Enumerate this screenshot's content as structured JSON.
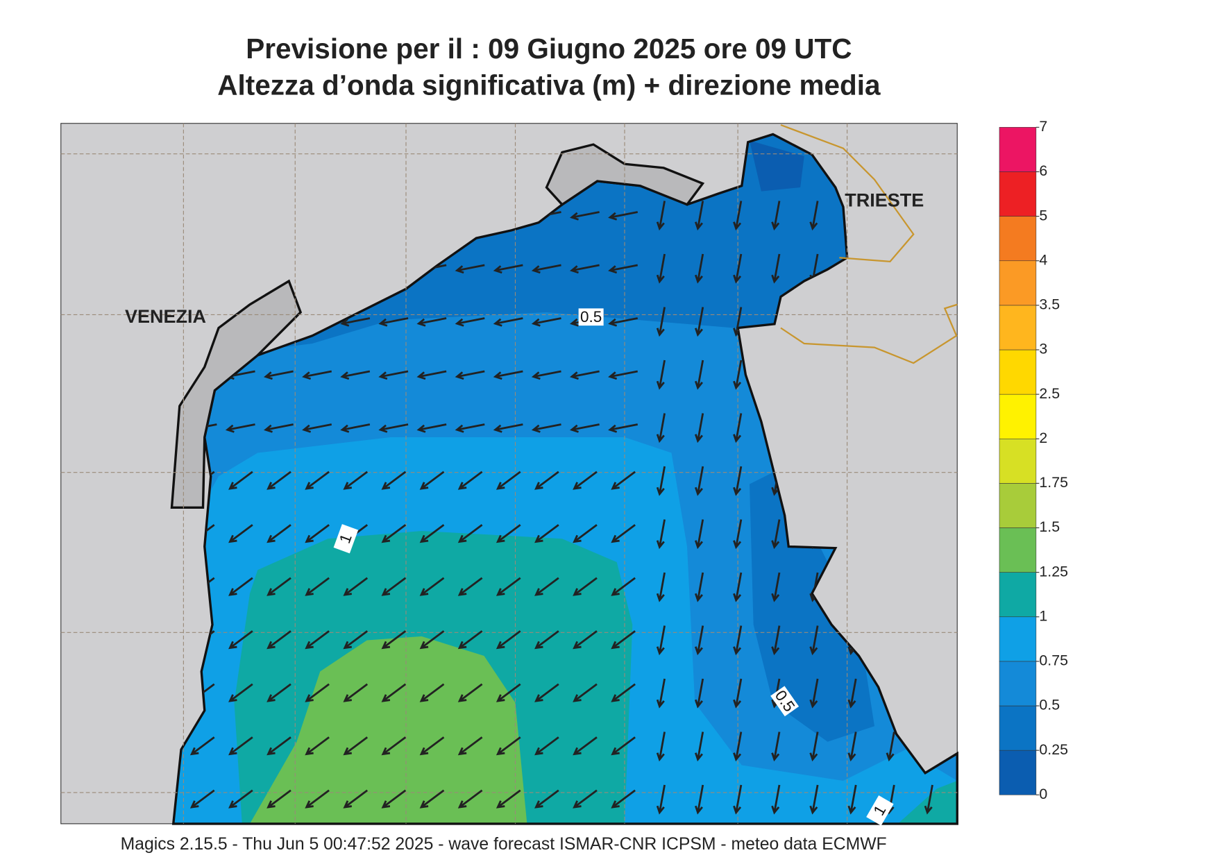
{
  "title": [
    "Previsione per il  :  09   Giugno  2025   ore 09 UTC",
    "Altezza d’onda significativa (m) + direzione media"
  ],
  "places": [
    "VENEZIA",
    "TRIESTE"
  ],
  "contour_labels": [
    "0.5",
    "1",
    "0.5",
    "1"
  ],
  "colorbar": {
    "ticks": [
      0,
      0.25,
      0.5,
      0.75,
      1,
      1.25,
      1.5,
      1.75,
      2,
      2.5,
      3,
      3.5,
      4,
      5,
      6,
      7
    ],
    "colors": [
      "#0b5db0",
      "#0b74c4",
      "#148ad8",
      "#0fa0e6",
      "#0fa9a4",
      "#6abf55",
      "#a8cc3a",
      "#d7e024",
      "#fff200",
      "#ffd800",
      "#ffb61e",
      "#fb9a25",
      "#f47b20",
      "#ed2024",
      "#ec1563"
    ]
  },
  "footer": "Magics 2.15.5 - Thu Jun  5 00:47:52 2025 - wave forecast  ISMAR-CNR  ICPSM - meteo data   ECMWF"
}
